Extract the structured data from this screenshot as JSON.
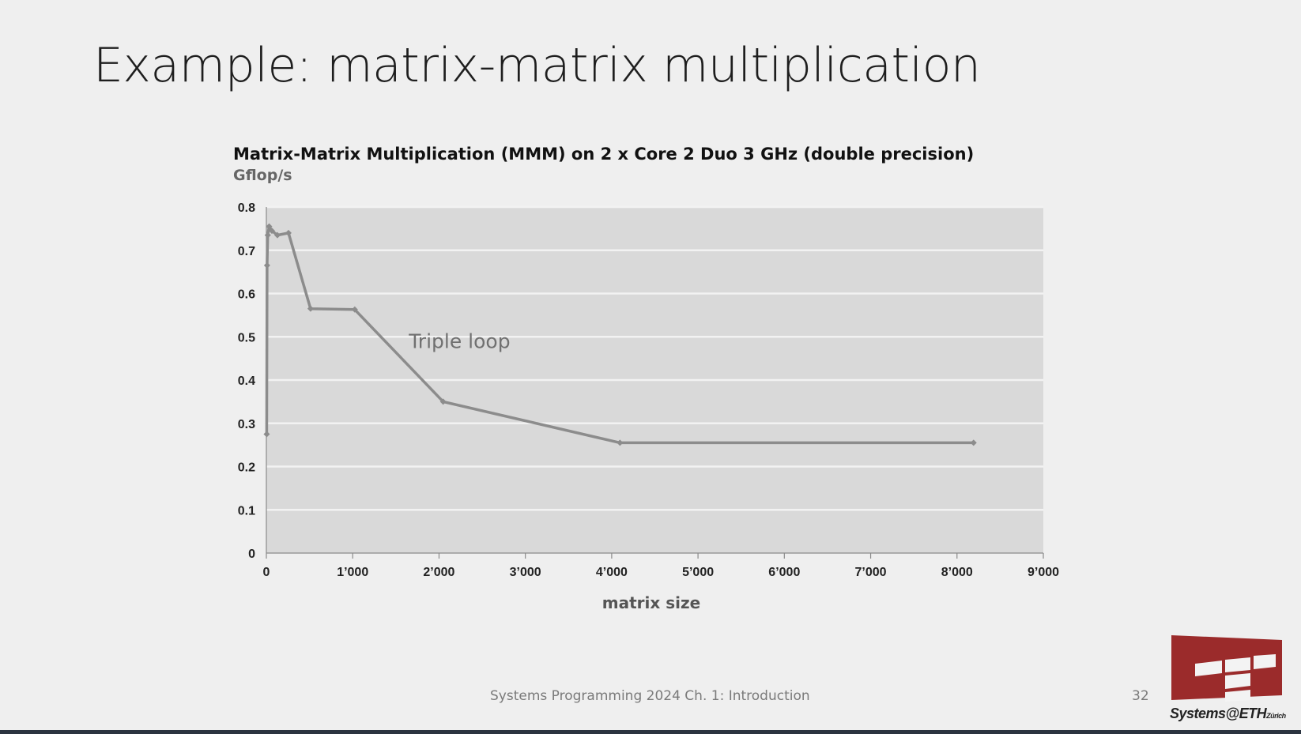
{
  "slide": {
    "title": "Example: matrix-matrix multiplication",
    "footer": "Systems Programming 2024 Ch. 1: Introduction",
    "page_number": "32",
    "logo_text": "Systems@ETH",
    "logo_subtext": "Zürich"
  },
  "colors": {
    "plot_background": "#d9d9d9",
    "gridline": "#f2f2f2",
    "series": "#8c8c8c",
    "logo": "#9b2b2b"
  },
  "chart_data": {
    "type": "line",
    "title": "Matrix-Matrix Multiplication (MMM) on 2 x Core 2 Duo 3 GHz (double precision)",
    "ylabel": "Gflop/s",
    "xlabel": "matrix size",
    "xlim": [
      0,
      9000
    ],
    "ylim": [
      0,
      0.8
    ],
    "xticks": [
      0,
      1000,
      2000,
      3000,
      4000,
      5000,
      6000,
      7000,
      8000,
      9000
    ],
    "xtick_labels": [
      "0",
      "1’000",
      "2’000",
      "3’000",
      "4’000",
      "5’000",
      "6’000",
      "7’000",
      "8’000",
      "9’000"
    ],
    "yticks": [
      0,
      0.1,
      0.2,
      0.3,
      0.4,
      0.5,
      0.6,
      0.7,
      0.8
    ],
    "ytick_labels": [
      "0",
      "0.1",
      "0.2",
      "0.3",
      "0.4",
      "0.5",
      "0.6",
      "0.7",
      "0.8"
    ],
    "grid": true,
    "series": [
      {
        "name": "Triple loop",
        "x": [
          4,
          8,
          16,
          32,
          64,
          128,
          256,
          512,
          1024,
          2048,
          4096,
          8192
        ],
        "y": [
          0.275,
          0.665,
          0.735,
          0.755,
          0.745,
          0.735,
          0.74,
          0.565,
          0.563,
          0.35,
          0.255,
          0.255
        ]
      }
    ],
    "annotations": [
      {
        "text": "Triple loop",
        "x": 1650,
        "y": 0.49
      }
    ]
  }
}
